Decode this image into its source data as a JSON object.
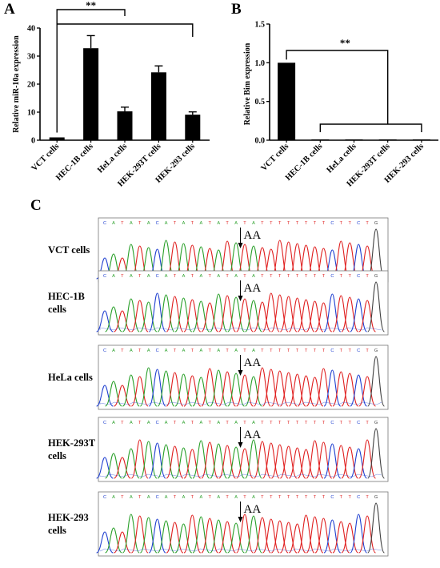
{
  "figure": {
    "panel_a_letter": "A",
    "panel_b_letter": "B",
    "panel_c_letter": "C"
  },
  "chart_data": [
    {
      "type": "bar",
      "panel": "A",
      "categories": [
        "VCT cells",
        "HEC-1B cells",
        "HeLa cells",
        "HEK-293T cells",
        "HEK-293 cells"
      ],
      "values": [
        1,
        32.8,
        10.3,
        24.2,
        9.1
      ],
      "errors": [
        0,
        4.5,
        1.5,
        2.3,
        1.0
      ],
      "ylabel": "Relative miR-10a expression",
      "ylim": [
        0,
        40
      ],
      "yticks": [
        0,
        10,
        20,
        30,
        40
      ],
      "bar_color": "#000000",
      "significance": [
        {
          "label": "**",
          "from": 0,
          "to": [
            2
          ]
        },
        {
          "label": "",
          "from": 0,
          "to": [
            4
          ]
        }
      ]
    },
    {
      "type": "bar",
      "panel": "B",
      "categories": [
        "VCT cells",
        "HEC-1B cells",
        "HeLa cells",
        "HEK-293T cells",
        "HEK-293 cells"
      ],
      "values": [
        1.0,
        0.01,
        0.01,
        0.01,
        0.01
      ],
      "errors": [
        0,
        0,
        0,
        0,
        0
      ],
      "ylabel": "Relative Bim expression",
      "ylim": [
        0,
        1.5
      ],
      "yticks": [
        0.0,
        0.5,
        1.0,
        1.5
      ],
      "bar_color": "#000000",
      "significance": [
        {
          "label": "**",
          "from": 0,
          "to": [
            1,
            2,
            3,
            4
          ],
          "bracket": true
        }
      ]
    }
  ],
  "chromatograms": {
    "sequence": "CATATACATATATATATATTTTTTTTCTTCTG",
    "mutation_label": "AA",
    "rows": [
      {
        "label_line1": "VCT cells",
        "label_line2": ""
      },
      {
        "label_line1": "HEC-1B",
        "label_line2": "cells"
      },
      {
        "label_line1": "HeLa cells",
        "label_line2": ""
      },
      {
        "label_line1": "HEK-293T",
        "label_line2": "cells"
      },
      {
        "label_line1": "HEK-293",
        "label_line2": "cells"
      }
    ],
    "base_colors": {
      "A": "#2aa02a",
      "T": "#e02020",
      "C": "#2040d0",
      "G": "#404040"
    }
  }
}
